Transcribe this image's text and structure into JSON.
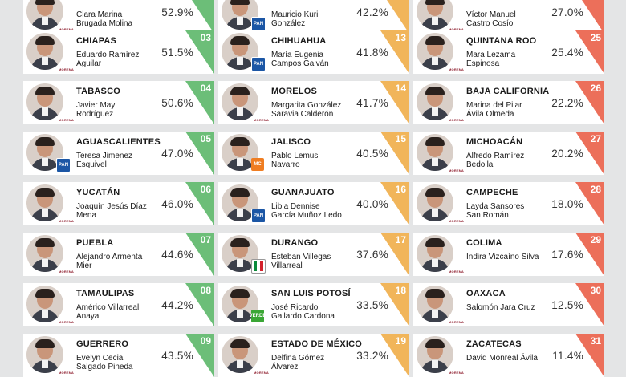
{
  "columns": [
    {
      "tier": "g1",
      "rows": [
        {
          "state": "",
          "name": "Clara Marina Brugada Molina",
          "pct": "52.9%",
          "rank": "",
          "party": "morena"
        },
        {
          "state": "CHIAPAS",
          "name": "Eduardo Ramírez Aguilar",
          "pct": "51.5%",
          "rank": "03",
          "party": "morena"
        },
        {
          "state": "TABASCO",
          "name": "Javier May Rodríguez",
          "pct": "50.6%",
          "rank": "04",
          "party": "morena"
        },
        {
          "state": "AGUASCALIENTES",
          "name": "Teresa Jimenez Esquivel",
          "pct": "47.0%",
          "rank": "05",
          "party": "pan"
        },
        {
          "state": "YUCATÁN",
          "name": "Joaquín Jesús Díaz Mena",
          "pct": "46.0%",
          "rank": "06",
          "party": "morena"
        },
        {
          "state": "PUEBLA",
          "name": "Alejandro Armenta Mier",
          "pct": "44.6%",
          "rank": "07",
          "party": "morena"
        },
        {
          "state": "TAMAULIPAS",
          "name": "Américo Villarreal Anaya",
          "pct": "44.2%",
          "rank": "08",
          "party": "morena"
        },
        {
          "state": "GUERRERO",
          "name": "Evelyn Cecia Salgado Pineda",
          "pct": "43.5%",
          "rank": "09",
          "party": "morena"
        }
      ]
    },
    {
      "tier": "g2",
      "rows": [
        {
          "state": "",
          "name": "Mauricio Kuri González",
          "pct": "42.2%",
          "rank": "",
          "party": "pan"
        },
        {
          "state": "CHIHUAHUA",
          "name": "María Eugenia Campos Galván",
          "pct": "41.8%",
          "rank": "13",
          "party": "pan"
        },
        {
          "state": "MORELOS",
          "name": "Margarita González Saravia Calderón",
          "pct": "41.7%",
          "rank": "14",
          "party": "morena"
        },
        {
          "state": "JALISCO",
          "name": "Pablo Lemus Navarro",
          "pct": "40.5%",
          "rank": "15",
          "party": "mc"
        },
        {
          "state": "GUANAJUATO",
          "name": "Libia Dennise García Muñoz Ledo",
          "pct": "40.0%",
          "rank": "16",
          "party": "pan"
        },
        {
          "state": "DURANGO",
          "name": "Esteban Villegas Villarreal",
          "pct": "37.6%",
          "rank": "17",
          "party": "pri"
        },
        {
          "state": "SAN LUIS POTOSÍ",
          "name": "José Ricardo Gallardo Cardona",
          "pct": "33.5%",
          "rank": "18",
          "party": "pvem"
        },
        {
          "state": "ESTADO DE MÉXICO",
          "name": "Delfina Gómez Álvarez",
          "pct": "33.2%",
          "rank": "19",
          "party": "morena"
        }
      ]
    },
    {
      "tier": "g3",
      "rows": [
        {
          "state": "",
          "name": "Víctor Manuel Castro Cosío",
          "pct": "27.0%",
          "rank": "",
          "party": "morena"
        },
        {
          "state": "QUINTANA ROO",
          "name": "Mara Lezama Espinosa",
          "pct": "25.4%",
          "rank": "25",
          "party": "morena"
        },
        {
          "state": "BAJA CALIFORNIA",
          "name": "Marina del Pilar Ávila Olmeda",
          "pct": "22.2%",
          "rank": "26",
          "party": "morena"
        },
        {
          "state": "MICHOACÁN",
          "name": "Alfredo Ramírez Bedolla",
          "pct": "20.2%",
          "rank": "27",
          "party": "morena"
        },
        {
          "state": "CAMPECHE",
          "name": "Layda Sansores San Román",
          "pct": "18.0%",
          "rank": "28",
          "party": "morena"
        },
        {
          "state": "COLIMA",
          "name": "Indira Vizcaíno Silva",
          "pct": "17.6%",
          "rank": "29",
          "party": "morena"
        },
        {
          "state": "OAXACA",
          "name": "Salomón Jara Cruz",
          "pct": "12.5%",
          "rank": "30",
          "party": "morena"
        },
        {
          "state": "ZACATECAS",
          "name": "David Monreal Ávila",
          "pct": "11.4%",
          "rank": "31",
          "party": "morena"
        }
      ]
    }
  ],
  "party_labels": {
    "pan": "PAN",
    "mc": "MC",
    "pvem": "VERDE",
    "morena": "MORENA"
  },
  "colors": {
    "green": "#6cbe78",
    "amber": "#f1b55a",
    "red": "#ec6f5a"
  },
  "icons": [
    "governor-portrait-icon",
    "party-logo-icon"
  ]
}
